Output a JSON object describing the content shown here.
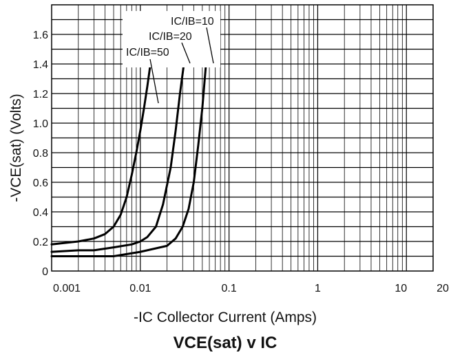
{
  "chart_data": {
    "type": "line",
    "title": "VCE(sat) v IC",
    "xlabel": "-IC  Collector Current (Amps)",
    "ylabel": "-VCE(sat)   (Volts)",
    "x_scale": "log",
    "xlim": [
      0.001,
      20
    ],
    "ylim": [
      0,
      1.8
    ],
    "x_ticks": [
      0.001,
      0.01,
      0.1,
      1,
      10,
      20
    ],
    "x_tick_labels": [
      "0.001",
      "0.01",
      "0.1",
      "1",
      "10",
      "20"
    ],
    "y_ticks": [
      0,
      0.2,
      0.4,
      0.6,
      0.8,
      1.0,
      1.2,
      1.4,
      1.6
    ],
    "y_tick_labels": [
      "0",
      "0.2",
      "0.4",
      "0.6",
      "0.8",
      "1.0",
      "1.2",
      "1.4",
      "1.6"
    ],
    "grid": true,
    "series": [
      {
        "name": "IC/IB=10",
        "points": [
          [
            0.001,
            0.1
          ],
          [
            0.002,
            0.1
          ],
          [
            0.005,
            0.1
          ],
          [
            0.01,
            0.13
          ],
          [
            0.02,
            0.17
          ],
          [
            0.025,
            0.22
          ],
          [
            0.03,
            0.3
          ],
          [
            0.035,
            0.42
          ],
          [
            0.04,
            0.6
          ],
          [
            0.045,
            0.85
          ],
          [
            0.05,
            1.1
          ],
          [
            0.055,
            1.4
          ]
        ]
      },
      {
        "name": "IC/IB=20",
        "points": [
          [
            0.001,
            0.13
          ],
          [
            0.002,
            0.14
          ],
          [
            0.003,
            0.14
          ],
          [
            0.005,
            0.16
          ],
          [
            0.008,
            0.18
          ],
          [
            0.01,
            0.2
          ],
          [
            0.012,
            0.23
          ],
          [
            0.015,
            0.3
          ],
          [
            0.018,
            0.45
          ],
          [
            0.022,
            0.7
          ],
          [
            0.025,
            0.95
          ],
          [
            0.028,
            1.2
          ],
          [
            0.031,
            1.4
          ]
        ]
      },
      {
        "name": "IC/IB=50",
        "points": [
          [
            0.001,
            0.18
          ],
          [
            0.002,
            0.2
          ],
          [
            0.003,
            0.22
          ],
          [
            0.004,
            0.25
          ],
          [
            0.005,
            0.3
          ],
          [
            0.006,
            0.38
          ],
          [
            0.007,
            0.5
          ],
          [
            0.008,
            0.65
          ],
          [
            0.009,
            0.8
          ],
          [
            0.01,
            0.95
          ],
          [
            0.011,
            1.1
          ],
          [
            0.012,
            1.25
          ],
          [
            0.013,
            1.4
          ]
        ]
      }
    ],
    "annotations": {
      "label_10": "IC/IB=10",
      "label_20": "IC/IB=20",
      "label_50": "IC/IB=50"
    }
  }
}
